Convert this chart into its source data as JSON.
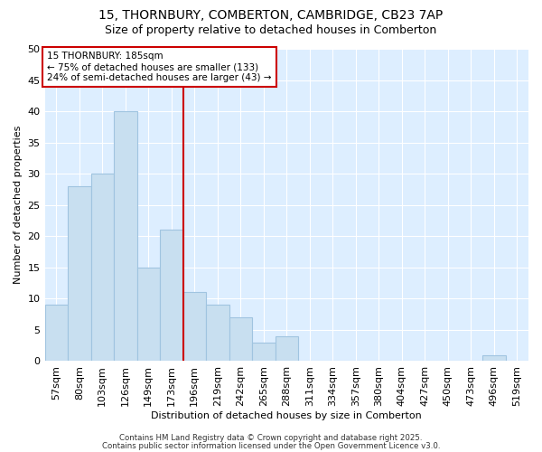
{
  "title1": "15, THORNBURY, COMBERTON, CAMBRIDGE, CB23 7AP",
  "title2": "Size of property relative to detached houses in Comberton",
  "xlabel": "Distribution of detached houses by size in Comberton",
  "ylabel": "Number of detached properties",
  "categories": [
    "57sqm",
    "80sqm",
    "103sqm",
    "126sqm",
    "149sqm",
    "173sqm",
    "196sqm",
    "219sqm",
    "242sqm",
    "265sqm",
    "288sqm",
    "311sqm",
    "334sqm",
    "357sqm",
    "380sqm",
    "404sqm",
    "427sqm",
    "450sqm",
    "473sqm",
    "496sqm",
    "519sqm"
  ],
  "values": [
    9,
    28,
    30,
    40,
    15,
    21,
    11,
    9,
    7,
    3,
    4,
    0,
    0,
    0,
    0,
    0,
    0,
    0,
    0,
    1,
    0
  ],
  "bar_color": "#c8dff0",
  "bar_edge_color": "#a0c4e0",
  "red_line_x": 6.0,
  "red_line_color": "#cc0000",
  "annotation_text_line1": "15 THORNBURY: 185sqm",
  "annotation_text_line2": "← 75% of detached houses are smaller (133)",
  "annotation_text_line3": "24% of semi-detached houses are larger (43) →",
  "bg_color": "#ffffff",
  "plot_bg_color": "#ddeeff",
  "grid_color": "#ffffff",
  "title1_fontsize": 10,
  "title2_fontsize": 9,
  "xlabel_fontsize": 8,
  "ylabel_fontsize": 8,
  "tick_fontsize": 8,
  "footer1": "Contains HM Land Registry data © Crown copyright and database right 2025.",
  "footer2": "Contains public sector information licensed under the Open Government Licence v3.0.",
  "ylim": [
    0,
    50
  ],
  "yticks": [
    0,
    5,
    10,
    15,
    20,
    25,
    30,
    35,
    40,
    45,
    50
  ]
}
